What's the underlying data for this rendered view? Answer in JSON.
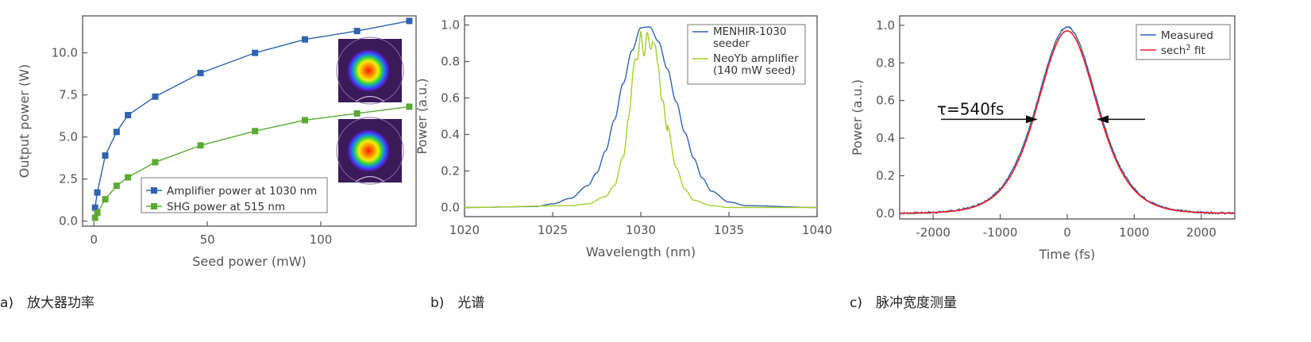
{
  "colors": {
    "blue": "#2e63b0",
    "green": "#5aaa32",
    "lightgreen": "#a4cf2c",
    "red": "#ee1c24",
    "axis": "#555555"
  },
  "chart_data": [
    {
      "type": "line",
      "caption": "a)　放大器功率",
      "xlabel": "Seed power (mW)",
      "ylabel": "Output power (W)",
      "xlim": [
        -5,
        142
      ],
      "ylim": [
        -0.3,
        12.2
      ],
      "xticks": [
        0,
        50,
        100
      ],
      "yticks": [
        0.0,
        2.5,
        5.0,
        7.5,
        10.0
      ],
      "ytick_labels": [
        "0.0",
        "2.5",
        "5.0",
        "7.5",
        "10.0"
      ],
      "insets": [
        "amplifier-beam-profile",
        "shg-beam-profile"
      ],
      "series": [
        {
          "name": "Amplifier power at 1030 nm",
          "marker": "square",
          "x": [
            0.5,
            1.5,
            5,
            10,
            15,
            27,
            47,
            71,
            93,
            116,
            139
          ],
          "y": [
            0.8,
            1.7,
            3.9,
            5.3,
            6.3,
            7.4,
            8.8,
            10.0,
            10.8,
            11.3,
            11.9
          ]
        },
        {
          "name": "SHG power at 515 nm",
          "marker": "square",
          "x": [
            0.5,
            1.5,
            5,
            10,
            15,
            27,
            47,
            71,
            93,
            116,
            139
          ],
          "y": [
            0.2,
            0.5,
            1.3,
            2.1,
            2.6,
            3.5,
            4.5,
            5.35,
            6.0,
            6.4,
            6.8
          ]
        }
      ]
    },
    {
      "type": "line",
      "caption": "b)　光谱",
      "xlabel": "Wavelength (nm)",
      "ylabel": "Power (a.u.)",
      "xlim": [
        1020,
        1040
      ],
      "ylim": [
        -0.05,
        1.05
      ],
      "xticks": [
        1020,
        1025,
        1030,
        1035,
        1040
      ],
      "yticks": [
        0.0,
        0.2,
        0.4,
        0.6,
        0.8,
        1.0
      ],
      "ytick_labels": [
        "0.0",
        "0.2",
        "0.4",
        "0.6",
        "0.8",
        "1.0"
      ],
      "series": [
        {
          "name": "MENHIR-1030 seeder",
          "legend_lines": [
            "MENHIR-1030",
            "seeder"
          ],
          "x": [
            1020,
            1024,
            1025,
            1026,
            1027,
            1027.5,
            1028,
            1028.5,
            1029,
            1029.5,
            1030,
            1030.5,
            1031,
            1031.5,
            1032,
            1032.5,
            1033,
            1033.5,
            1034,
            1035,
            1036,
            1040
          ],
          "y": [
            0.0,
            0.005,
            0.02,
            0.05,
            0.12,
            0.19,
            0.31,
            0.48,
            0.68,
            0.86,
            0.985,
            0.99,
            0.91,
            0.76,
            0.58,
            0.41,
            0.27,
            0.16,
            0.09,
            0.03,
            0.01,
            0.0
          ]
        },
        {
          "name": "NeoYb amplifier (140 mW seed)",
          "legend_lines": [
            "NeoYb amplifier",
            "(140 mW seed)"
          ],
          "x": [
            1020,
            1026,
            1027,
            1028,
            1028.5,
            1029,
            1029.3,
            1029.6,
            1029.8,
            1030.0,
            1030.2,
            1030.4,
            1030.6,
            1030.8,
            1031.0,
            1031.2,
            1031.5,
            1032,
            1032.5,
            1033,
            1034,
            1035,
            1040
          ],
          "y": [
            0.0,
            0.01,
            0.02,
            0.06,
            0.12,
            0.28,
            0.5,
            0.8,
            0.86,
            0.97,
            0.88,
            0.99,
            0.9,
            0.95,
            0.78,
            0.62,
            0.45,
            0.22,
            0.1,
            0.04,
            0.01,
            0.0,
            0.0
          ]
        }
      ]
    },
    {
      "type": "line",
      "caption": "c)　脉冲宽度测量",
      "xlabel": "Time (fs)",
      "ylabel": "Power (a.u.)",
      "xlim": [
        -2500,
        2500
      ],
      "ylim": [
        -0.03,
        1.05
      ],
      "xticks": [
        -2000,
        -1000,
        0,
        1000,
        2000
      ],
      "yticks": [
        0.0,
        0.2,
        0.4,
        0.6,
        0.8,
        1.0
      ],
      "ytick_labels": [
        "0.0",
        "0.2",
        "0.4",
        "0.6",
        "0.8",
        "1.0"
      ],
      "annotation": "τ=540fs",
      "fwhm_fs": 540,
      "series": [
        {
          "name": "Measured",
          "peak": 0.99,
          "fwhm_fs": 1060
        },
        {
          "name": "sech² fit",
          "legend_base": "sech",
          "legend_sup": "2",
          "legend_tail": " fit",
          "peak": 0.97,
          "fwhm_fs": 1060
        }
      ]
    }
  ]
}
